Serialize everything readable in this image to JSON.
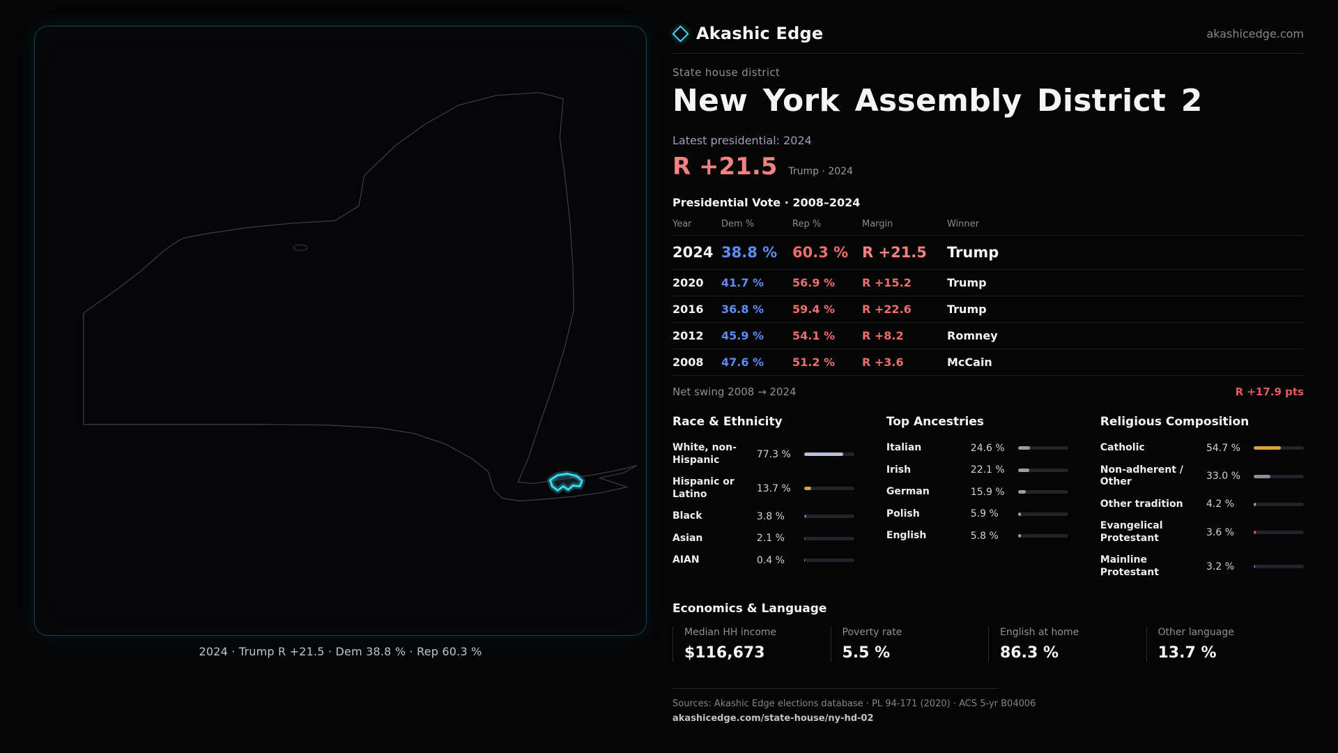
{
  "brand": {
    "name": "Akashic Edge",
    "domain": "akashicedge.com"
  },
  "map": {
    "caption": "2024 · Trump R +21.5 · Dem 38.8 % · Rep 60.3 %"
  },
  "header": {
    "kicker": "State house district",
    "title": "New York Assembly District 2",
    "latest_label": "Latest presidential: 2024",
    "margin_big": "R +21.5",
    "margin_context": "Trump · 2024"
  },
  "vote_table": {
    "title": "Presidential Vote · 2008–2024",
    "columns": {
      "year": "Year",
      "dem": "Dem %",
      "rep": "Rep %",
      "margin": "Margin",
      "winner": "Winner"
    },
    "rows": [
      {
        "year": "2024",
        "dem": "38.8 %",
        "rep": "60.3 %",
        "margin": "R +21.5",
        "winner": "Trump"
      },
      {
        "year": "2020",
        "dem": "41.7 %",
        "rep": "56.9 %",
        "margin": "R +15.2",
        "winner": "Trump"
      },
      {
        "year": "2016",
        "dem": "36.8 %",
        "rep": "59.4 %",
        "margin": "R +22.6",
        "winner": "Trump"
      },
      {
        "year": "2012",
        "dem": "45.9 %",
        "rep": "54.1 %",
        "margin": "R +8.2",
        "winner": "Romney"
      },
      {
        "year": "2008",
        "dem": "47.6 %",
        "rep": "51.2 %",
        "margin": "R +3.6",
        "winner": "McCain"
      }
    ]
  },
  "net_swing": {
    "label": "Net swing 2008 → 2024",
    "value": "R +17.9 pts"
  },
  "demographics": {
    "race": {
      "heading": "Race & Ethnicity",
      "items": [
        {
          "label": "White, non-Hispanic",
          "value": "77.3 %",
          "pct": 77.3,
          "color": "#b9bfd6"
        },
        {
          "label": "Hispanic or Latino",
          "value": "13.7 %",
          "pct": 13.7,
          "color": "#d7a43c"
        },
        {
          "label": "Black",
          "value": "3.8 %",
          "pct": 3.8,
          "color": "#4e6fd6"
        },
        {
          "label": "Asian",
          "value": "2.1 %",
          "pct": 2.1,
          "color": "#3f9e6e"
        },
        {
          "label": "AIAN",
          "value": "0.4 %",
          "pct": 0.4,
          "color": "#9aa0aa"
        }
      ]
    },
    "ancestries": {
      "heading": "Top Ancestries",
      "items": [
        {
          "label": "Italian",
          "value": "24.6 %",
          "pct": 24.6,
          "color": "#9aa0aa"
        },
        {
          "label": "Irish",
          "value": "22.1 %",
          "pct": 22.1,
          "color": "#9aa0aa"
        },
        {
          "label": "German",
          "value": "15.9 %",
          "pct": 15.9,
          "color": "#9aa0aa"
        },
        {
          "label": "Polish",
          "value": "5.9 %",
          "pct": 5.9,
          "color": "#9aa0aa"
        },
        {
          "label": "English",
          "value": "5.8 %",
          "pct": 5.8,
          "color": "#9aa0aa"
        }
      ]
    },
    "religion": {
      "heading": "Religious Composition",
      "items": [
        {
          "label": "Catholic",
          "value": "54.7 %",
          "pct": 54.7,
          "color": "#d7a43c"
        },
        {
          "label": "Non-adherent / Other",
          "value": "33.0 %",
          "pct": 33.0,
          "color": "#8a8f99"
        },
        {
          "label": "Other tradition",
          "value": "4.2 %",
          "pct": 4.2,
          "color": "#9aa0aa"
        },
        {
          "label": "Evangelical Protestant",
          "value": "3.6 %",
          "pct": 3.6,
          "color": "#d85656"
        },
        {
          "label": "Mainline Protestant",
          "value": "3.2 %",
          "pct": 3.2,
          "color": "#4e6fd6"
        }
      ]
    }
  },
  "economics": {
    "heading": "Economics & Language",
    "stats": [
      {
        "label": "Median HH income",
        "value": "$116,673"
      },
      {
        "label": "Poverty rate",
        "value": "5.5 %"
      },
      {
        "label": "English at home",
        "value": "86.3 %"
      },
      {
        "label": "Other language",
        "value": "13.7 %"
      }
    ]
  },
  "footer": {
    "sources": "Sources: Akashic Edge elections database · PL 94-171 (2020) · ACS 5-yr B04006",
    "permalink": "akashicedge.com/state-house/ny-hd-02"
  },
  "colors": {
    "accent": "#3fd6ee",
    "dem": "#5f8df5",
    "rep": "#ef6e6e",
    "gold": "#d7a43c"
  }
}
